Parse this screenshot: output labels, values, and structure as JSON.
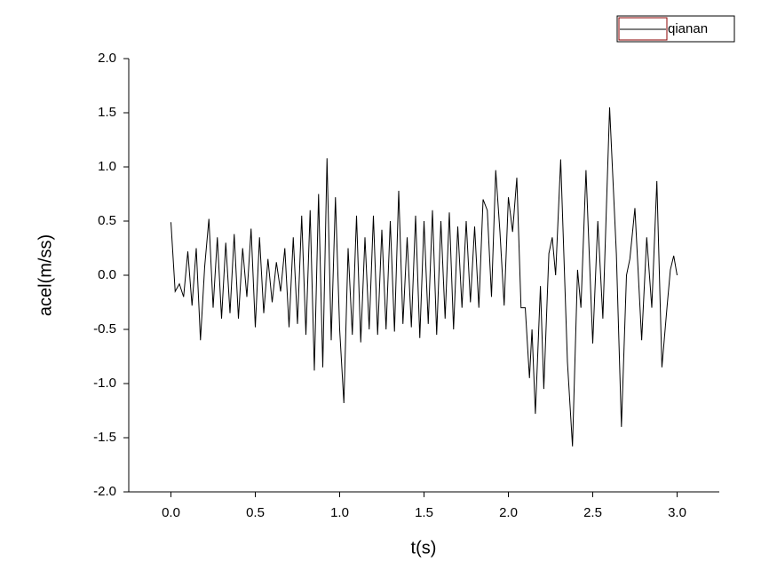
{
  "chart_data": {
    "type": "line",
    "x_label": "t(s)",
    "y_label": "acel(m/ss)",
    "xlim": [
      -0.25,
      3.25
    ],
    "ylim": [
      -2,
      2
    ],
    "xticks": [
      {
        "value": 0,
        "label": "0.0"
      },
      0.5,
      {
        "value": 1,
        "label": "1.0"
      },
      1.5,
      {
        "value": 2,
        "label": "2.0"
      },
      2.5,
      {
        "value": 3,
        "label": "3.0"
      }
    ],
    "yticks": [
      {
        "value": -2,
        "label": "-2.0"
      },
      -1.5,
      {
        "value": -1,
        "label": "-1.0"
      },
      -0.5,
      {
        "value": 0,
        "label": "0.0"
      },
      0.5,
      {
        "value": 1,
        "label": "1.0"
      },
      1.5,
      {
        "value": 2,
        "label": "2.0"
      }
    ],
    "legend": "top-right",
    "x": [
      0,
      0.025,
      0.05,
      0.075,
      0.1,
      0.125,
      0.15,
      0.175,
      0.2,
      0.225,
      0.25,
      0.275,
      0.3,
      0.325,
      0.35,
      0.375,
      0.4,
      0.425,
      0.45,
      0.475,
      0.5,
      0.525,
      0.55,
      0.575,
      0.6,
      0.625,
      0.65,
      0.675,
      0.7,
      0.725,
      0.75,
      0.775,
      0.8,
      0.825,
      0.85,
      0.875,
      0.9,
      0.925,
      0.95,
      0.975,
      1.0,
      1.025,
      1.05,
      1.075,
      1.1,
      1.125,
      1.15,
      1.175,
      1.2,
      1.225,
      1.25,
      1.275,
      1.3,
      1.325,
      1.35,
      1.375,
      1.4,
      1.425,
      1.45,
      1.475,
      1.5,
      1.525,
      1.55,
      1.575,
      1.6,
      1.625,
      1.65,
      1.675,
      1.7,
      1.725,
      1.75,
      1.775,
      1.8,
      1.825,
      1.85,
      1.875,
      1.9,
      1.925,
      1.95,
      1.975,
      2.0,
      2.025,
      2.05,
      2.075,
      2.1,
      2.125,
      2.14,
      2.16,
      2.19,
      2.21,
      2.24,
      2.26,
      2.28,
      2.31,
      2.35,
      2.38,
      2.41,
      2.43,
      2.46,
      2.5,
      2.53,
      2.56,
      2.6,
      2.64,
      2.67,
      2.7,
      2.72,
      2.75,
      2.79,
      2.82,
      2.85,
      2.88,
      2.91,
      2.94,
      2.96,
      2.98,
      3.0
    ],
    "series": [
      {
        "name": "qianan",
        "color": "#000000",
        "values": [
          0.49,
          -0.15,
          -0.08,
          -0.2,
          0.22,
          -0.28,
          0.25,
          -0.6,
          0.08,
          0.52,
          -0.3,
          0.35,
          -0.4,
          0.3,
          -0.35,
          0.38,
          -0.4,
          0.25,
          -0.2,
          0.43,
          -0.48,
          0.35,
          -0.35,
          0.15,
          -0.25,
          0.12,
          -0.15,
          0.25,
          -0.48,
          0.35,
          -0.45,
          0.55,
          -0.55,
          0.6,
          -0.88,
          0.75,
          -0.85,
          1.08,
          -0.6,
          0.72,
          -0.5,
          -1.18,
          0.25,
          -0.55,
          0.55,
          -0.62,
          0.35,
          -0.5,
          0.55,
          -0.55,
          0.42,
          -0.5,
          0.5,
          -0.52,
          0.78,
          -0.45,
          0.35,
          -0.48,
          0.55,
          -0.58,
          0.5,
          -0.45,
          0.6,
          -0.55,
          0.5,
          -0.4,
          0.58,
          -0.5,
          0.45,
          -0.3,
          0.5,
          -0.25,
          0.45,
          -0.3,
          0.7,
          0.6,
          -0.2,
          0.97,
          0.4,
          -0.28,
          0.72,
          0.4,
          0.9,
          -0.3,
          -0.3,
          -0.95,
          -0.5,
          -1.28,
          -0.1,
          -1.05,
          0.2,
          0.35,
          0.0,
          1.07,
          -0.8,
          -1.58,
          0.05,
          -0.3,
          0.97,
          -0.63,
          0.5,
          -0.4,
          1.55,
          0.2,
          -1.4,
          0.0,
          0.15,
          0.62,
          -0.6,
          0.35,
          -0.3,
          0.87,
          -0.85,
          -0.3,
          0.05,
          0.18,
          0.0
        ]
      }
    ]
  }
}
